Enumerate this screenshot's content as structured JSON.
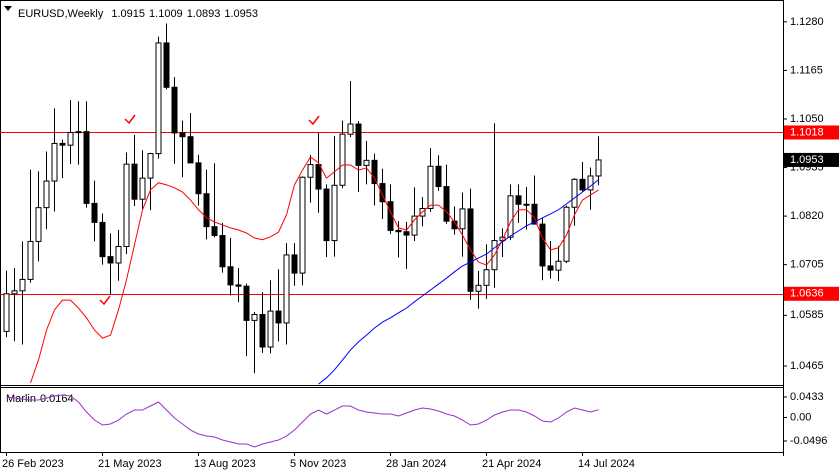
{
  "chart_data": {
    "type": "candlestick",
    "title": "EURUSD,Weekly",
    "categories": [
      "26 Feb 2023",
      null,
      null,
      null,
      null,
      null,
      null,
      null,
      null,
      null,
      null,
      null,
      "21 May 2023",
      null,
      null,
      null,
      null,
      null,
      null,
      null,
      null,
      null,
      null,
      null,
      "13 Aug 2023",
      null,
      null,
      null,
      null,
      null,
      null,
      null,
      null,
      null,
      null,
      null,
      "5 Nov 2023",
      null,
      null,
      null,
      null,
      null,
      null,
      null,
      null,
      null,
      null,
      null,
      "28 Jan 2024",
      null,
      null,
      null,
      null,
      null,
      null,
      null,
      null,
      null,
      null,
      null,
      "21 Apr 2024",
      null,
      null,
      null,
      null,
      null,
      null,
      null,
      null,
      null,
      null,
      null,
      "14 Jul 2024",
      null,
      null
    ],
    "ohlc": [
      [
        1.0547,
        1.0691,
        1.0533,
        1.0636
      ],
      [
        1.0636,
        1.0697,
        1.0524,
        1.0643
      ],
      [
        1.0643,
        1.076,
        1.0516,
        1.067
      ],
      [
        1.067,
        1.093,
        1.0662,
        1.076
      ],
      [
        1.076,
        1.0926,
        1.0713,
        1.084
      ],
      [
        1.084,
        1.0973,
        1.0789,
        1.0903
      ],
      [
        1.0903,
        1.1075,
        1.0831,
        1.0992
      ],
      [
        1.0992,
        1.1001,
        1.091,
        1.0988
      ],
      [
        1.0988,
        1.1095,
        1.0943,
        1.1018
      ],
      [
        1.1018,
        1.1092,
        1.0942,
        1.102
      ],
      [
        1.102,
        1.1092,
        1.084,
        1.085
      ],
      [
        1.085,
        1.0904,
        1.076,
        1.0805
      ],
      [
        1.0805,
        1.0826,
        1.0705,
        1.0724
      ],
      [
        1.0724,
        1.0779,
        1.0635,
        1.0709
      ],
      [
        1.0709,
        1.0787,
        1.0667,
        1.0748
      ],
      [
        1.0748,
        1.0971,
        1.073,
        1.0943
      ],
      [
        1.0943,
        1.1012,
        1.0844,
        1.086
      ],
      [
        1.086,
        1.0976,
        1.0835,
        1.091
      ],
      [
        1.091,
        1.097,
        1.0834,
        1.0968
      ],
      [
        1.0968,
        1.1245,
        1.0956,
        1.123
      ],
      [
        1.123,
        1.1276,
        1.112,
        1.1125
      ],
      [
        1.1125,
        1.1149,
        1.0944,
        1.1017
      ],
      [
        1.1017,
        1.1046,
        1.0912,
        1.1008
      ],
      [
        1.1008,
        1.1064,
        1.0945,
        1.0946
      ],
      [
        1.0946,
        1.0965,
        1.0845,
        1.0873
      ],
      [
        1.0873,
        1.093,
        1.0765,
        1.0795
      ],
      [
        1.0795,
        1.0945,
        1.077,
        1.0774
      ],
      [
        1.0774,
        1.0804,
        1.0686,
        1.07
      ],
      [
        1.07,
        1.0768,
        1.0632,
        1.0657
      ],
      [
        1.0657,
        1.0697,
        1.0616,
        1.0654
      ],
      [
        1.0654,
        1.066,
        1.0488,
        1.0573
      ],
      [
        1.0573,
        1.0593,
        1.0448,
        1.0587
      ],
      [
        1.0587,
        1.064,
        1.0496,
        1.051
      ],
      [
        1.051,
        1.0668,
        1.0495,
        1.0595
      ],
      [
        1.0595,
        1.0694,
        1.0523,
        1.0567
      ],
      [
        1.0567,
        1.0756,
        1.0516,
        1.0728
      ],
      [
        1.0728,
        1.0756,
        1.0655,
        1.0685
      ],
      [
        1.0685,
        1.0914,
        1.0656,
        1.0912
      ],
      [
        1.0912,
        1.0965,
        1.0852,
        1.0942
      ],
      [
        1.0942,
        1.1017,
        1.0828,
        1.0884
      ],
      [
        1.0884,
        1.0895,
        1.0723,
        1.0762
      ],
      [
        1.0762,
        1.101,
        1.0724,
        1.0893
      ],
      [
        1.0893,
        1.1046,
        1.0886,
        1.1014
      ],
      [
        1.1014,
        1.114,
        1.1007,
        1.1038
      ],
      [
        1.1038,
        1.1045,
        1.0877,
        1.094
      ],
      [
        1.094,
        1.0998,
        1.0895,
        1.0952
      ],
      [
        1.0952,
        1.0968,
        1.0845,
        1.0897
      ],
      [
        1.0897,
        1.0932,
        1.0813,
        1.0854
      ],
      [
        1.0854,
        1.0895,
        1.0778,
        1.0786
      ],
      [
        1.0786,
        1.0808,
        1.0722,
        1.0783
      ],
      [
        1.0783,
        1.0806,
        1.0695,
        1.0775
      ],
      [
        1.0775,
        1.0888,
        1.0761,
        1.082
      ],
      [
        1.082,
        1.0865,
        1.0796,
        1.0838
      ],
      [
        1.0838,
        1.0981,
        1.083,
        1.0938
      ],
      [
        1.0938,
        1.0964,
        1.088,
        1.089
      ],
      [
        1.089,
        1.0942,
        1.0802,
        1.0808
      ],
      [
        1.0808,
        1.0843,
        1.0776,
        1.079
      ],
      [
        1.079,
        1.0876,
        1.0724,
        1.0837
      ],
      [
        1.0837,
        1.0885,
        1.0622,
        1.0642
      ],
      [
        1.0642,
        1.069,
        1.0601,
        1.0656
      ],
      [
        1.0656,
        1.0753,
        1.0624,
        1.0693
      ],
      [
        1.0693,
        1.104,
        1.065,
        1.0762
      ],
      [
        1.0762,
        1.0791,
        1.0723,
        1.077
      ],
      [
        1.077,
        1.0895,
        1.0763,
        1.0868
      ],
      [
        1.0868,
        1.0895,
        1.0804,
        1.0848
      ],
      [
        1.0848,
        1.0889,
        1.0788,
        1.0848
      ],
      [
        1.0848,
        1.0916,
        1.0801,
        1.0801
      ],
      [
        1.0801,
        1.0815,
        1.0668,
        1.0702
      ],
      [
        1.0702,
        1.0761,
        1.0672,
        1.0692
      ],
      [
        1.0692,
        1.0749,
        1.0666,
        1.0713
      ],
      [
        1.0713,
        1.0845,
        1.0709,
        1.0841
      ],
      [
        1.0841,
        1.091,
        1.0797,
        1.0907
      ],
      [
        1.0907,
        1.0948,
        1.0877,
        1.0882
      ],
      [
        1.0882,
        1.0935,
        1.0835,
        1.0915
      ],
      [
        1.0915,
        1.1009,
        1.0893,
        1.0953
      ]
    ],
    "up_color": "#ffffff",
    "down_color": "#000000",
    "ylim": [
      1.042,
      1.1327
    ],
    "yticks": [
      {
        "value": 1.128,
        "label": "1.1280"
      },
      1.1165,
      {
        "value": 1.105,
        "label": "1.1050"
      },
      1.0935,
      {
        "value": 1.082,
        "label": "1.0820"
      },
      1.0705,
      1.0585,
      1.0465
    ],
    "hlines": [
      {
        "value": 1.1018,
        "color": "#ff0000"
      },
      {
        "value": 1.0636,
        "color": "#ff0000"
      }
    ],
    "overlays": [
      {
        "color": "#ff0000",
        "values": [
          null,
          null,
          null,
          1.0425,
          1.0479,
          1.055,
          1.0598,
          1.0621,
          1.0621,
          1.0602,
          1.0579,
          1.055,
          1.0531,
          1.0538,
          1.0598,
          1.0669,
          1.0752,
          1.0835,
          1.0882,
          1.0899,
          1.0894,
          1.0887,
          1.0877,
          1.0858,
          1.0835,
          1.0816,
          1.0806,
          1.0799,
          1.0792,
          1.0787,
          1.078,
          1.0768,
          1.0764,
          1.0771,
          1.0782,
          1.0823,
          1.0894,
          1.0929,
          1.096,
          1.0946,
          1.091,
          1.0925,
          1.0941,
          1.0941,
          1.0929,
          1.0934,
          1.091,
          1.087,
          1.083,
          1.0792,
          1.0787,
          1.0811,
          1.083,
          1.0846,
          1.0846,
          1.083,
          1.0806,
          1.0775,
          1.074,
          1.0711,
          1.0704,
          1.0728,
          1.0764,
          1.0806,
          1.0835,
          1.0835,
          1.0816,
          1.0768,
          1.074,
          1.0745,
          1.0775,
          1.0823,
          1.0858,
          1.087,
          1.0882
        ]
      },
      {
        "color": "#0000ff",
        "values": [
          null,
          null,
          null,
          null,
          null,
          null,
          null,
          null,
          null,
          null,
          null,
          null,
          null,
          null,
          null,
          null,
          null,
          null,
          null,
          null,
          null,
          null,
          null,
          null,
          null,
          null,
          null,
          null,
          null,
          null,
          null,
          null,
          null,
          null,
          null,
          null,
          null,
          null,
          null,
          1.0422,
          1.0437,
          1.0456,
          1.0479,
          1.0503,
          1.0522,
          1.0538,
          1.0555,
          1.0569,
          1.0579,
          1.0591,
          1.0602,
          1.0617,
          1.0631,
          1.0645,
          1.0659,
          1.0673,
          1.0688,
          1.0702,
          1.0711,
          1.0721,
          1.073,
          1.0745,
          1.0759,
          1.0773,
          1.0785,
          1.0797,
          1.0806,
          1.0816,
          1.0825,
          1.0835,
          1.0849,
          1.0863,
          1.0877,
          1.0891,
          1.0906
        ]
      }
    ],
    "indicator": {
      "name": "Marlin",
      "color": "#9b30c8",
      "values": [
        0.0433,
        0.0412,
        0.0391,
        0.037,
        0.037,
        0.0412,
        0.0454,
        0.0475,
        0.0454,
        0.0327,
        0.0116,
        -0.0053,
        -0.0158,
        -0.0137,
        -0.0053,
        0.0074,
        0.0158,
        0.0158,
        0.0243,
        0.0327,
        0.0158,
        -0.001,
        -0.0137,
        -0.0264,
        -0.0348,
        -0.0391,
        -0.0412,
        -0.0475,
        -0.0517,
        -0.0559,
        -0.0559,
        -0.0623,
        -0.0559,
        -0.0517,
        -0.0475,
        -0.0391,
        -0.0264,
        -0.0095,
        0.0074,
        0.0158,
        0.0074,
        0.0158,
        0.0243,
        0.0243,
        0.0158,
        0.0116,
        0.0095,
        0.0074,
        0.0074,
        0.0032,
        0.0095,
        0.0158,
        0.0201,
        0.018,
        0.0137,
        0.0074,
        0.0032,
        -0.0053,
        -0.0158,
        -0.0137,
        -0.0053,
        0.0053,
        0.0116,
        0.0158,
        0.0158,
        0.0116,
        0.0032,
        -0.0074,
        -0.0095,
        -0.001,
        0.0116,
        0.0201,
        0.0158,
        0.0116,
        0.0164
      ],
      "ylim": [
        -0.0728,
        0.0623
      ],
      "yticks": [
        0.0433,
        {
          "value": 0,
          "label": "0.00"
        },
        -0.0496
      ]
    }
  }
}
